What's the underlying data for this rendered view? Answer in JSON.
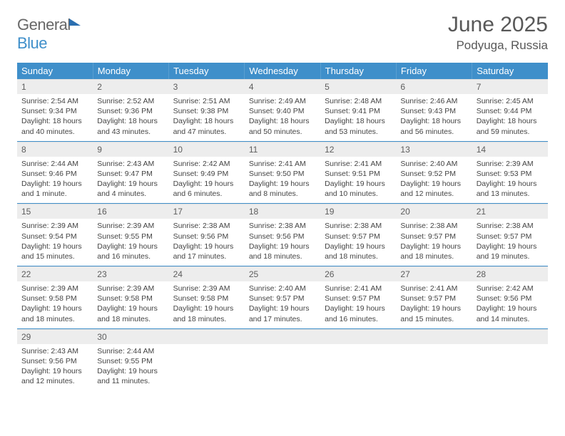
{
  "brand": {
    "part1": "General",
    "part2": "Blue"
  },
  "title": "June 2025",
  "location": "Podyuga, Russia",
  "colors": {
    "header_bg": "#3f8fca",
    "header_text": "#ffffff",
    "daynum_bg": "#ededed",
    "daynum_text": "#5d5d5d",
    "body_text": "#444444",
    "rule": "#3f8fca",
    "title_text": "#585858"
  },
  "dow": [
    "Sunday",
    "Monday",
    "Tuesday",
    "Wednesday",
    "Thursday",
    "Friday",
    "Saturday"
  ],
  "weeks": [
    [
      {
        "n": "1",
        "sr": "Sunrise: 2:54 AM",
        "ss": "Sunset: 9:34 PM",
        "dl1": "Daylight: 18 hours",
        "dl2": "and 40 minutes."
      },
      {
        "n": "2",
        "sr": "Sunrise: 2:52 AM",
        "ss": "Sunset: 9:36 PM",
        "dl1": "Daylight: 18 hours",
        "dl2": "and 43 minutes."
      },
      {
        "n": "3",
        "sr": "Sunrise: 2:51 AM",
        "ss": "Sunset: 9:38 PM",
        "dl1": "Daylight: 18 hours",
        "dl2": "and 47 minutes."
      },
      {
        "n": "4",
        "sr": "Sunrise: 2:49 AM",
        "ss": "Sunset: 9:40 PM",
        "dl1": "Daylight: 18 hours",
        "dl2": "and 50 minutes."
      },
      {
        "n": "5",
        "sr": "Sunrise: 2:48 AM",
        "ss": "Sunset: 9:41 PM",
        "dl1": "Daylight: 18 hours",
        "dl2": "and 53 minutes."
      },
      {
        "n": "6",
        "sr": "Sunrise: 2:46 AM",
        "ss": "Sunset: 9:43 PM",
        "dl1": "Daylight: 18 hours",
        "dl2": "and 56 minutes."
      },
      {
        "n": "7",
        "sr": "Sunrise: 2:45 AM",
        "ss": "Sunset: 9:44 PM",
        "dl1": "Daylight: 18 hours",
        "dl2": "and 59 minutes."
      }
    ],
    [
      {
        "n": "8",
        "sr": "Sunrise: 2:44 AM",
        "ss": "Sunset: 9:46 PM",
        "dl1": "Daylight: 19 hours",
        "dl2": "and 1 minute."
      },
      {
        "n": "9",
        "sr": "Sunrise: 2:43 AM",
        "ss": "Sunset: 9:47 PM",
        "dl1": "Daylight: 19 hours",
        "dl2": "and 4 minutes."
      },
      {
        "n": "10",
        "sr": "Sunrise: 2:42 AM",
        "ss": "Sunset: 9:49 PM",
        "dl1": "Daylight: 19 hours",
        "dl2": "and 6 minutes."
      },
      {
        "n": "11",
        "sr": "Sunrise: 2:41 AM",
        "ss": "Sunset: 9:50 PM",
        "dl1": "Daylight: 19 hours",
        "dl2": "and 8 minutes."
      },
      {
        "n": "12",
        "sr": "Sunrise: 2:41 AM",
        "ss": "Sunset: 9:51 PM",
        "dl1": "Daylight: 19 hours",
        "dl2": "and 10 minutes."
      },
      {
        "n": "13",
        "sr": "Sunrise: 2:40 AM",
        "ss": "Sunset: 9:52 PM",
        "dl1": "Daylight: 19 hours",
        "dl2": "and 12 minutes."
      },
      {
        "n": "14",
        "sr": "Sunrise: 2:39 AM",
        "ss": "Sunset: 9:53 PM",
        "dl1": "Daylight: 19 hours",
        "dl2": "and 13 minutes."
      }
    ],
    [
      {
        "n": "15",
        "sr": "Sunrise: 2:39 AM",
        "ss": "Sunset: 9:54 PM",
        "dl1": "Daylight: 19 hours",
        "dl2": "and 15 minutes."
      },
      {
        "n": "16",
        "sr": "Sunrise: 2:39 AM",
        "ss": "Sunset: 9:55 PM",
        "dl1": "Daylight: 19 hours",
        "dl2": "and 16 minutes."
      },
      {
        "n": "17",
        "sr": "Sunrise: 2:38 AM",
        "ss": "Sunset: 9:56 PM",
        "dl1": "Daylight: 19 hours",
        "dl2": "and 17 minutes."
      },
      {
        "n": "18",
        "sr": "Sunrise: 2:38 AM",
        "ss": "Sunset: 9:56 PM",
        "dl1": "Daylight: 19 hours",
        "dl2": "and 18 minutes."
      },
      {
        "n": "19",
        "sr": "Sunrise: 2:38 AM",
        "ss": "Sunset: 9:57 PM",
        "dl1": "Daylight: 19 hours",
        "dl2": "and 18 minutes."
      },
      {
        "n": "20",
        "sr": "Sunrise: 2:38 AM",
        "ss": "Sunset: 9:57 PM",
        "dl1": "Daylight: 19 hours",
        "dl2": "and 18 minutes."
      },
      {
        "n": "21",
        "sr": "Sunrise: 2:38 AM",
        "ss": "Sunset: 9:57 PM",
        "dl1": "Daylight: 19 hours",
        "dl2": "and 19 minutes."
      }
    ],
    [
      {
        "n": "22",
        "sr": "Sunrise: 2:39 AM",
        "ss": "Sunset: 9:58 PM",
        "dl1": "Daylight: 19 hours",
        "dl2": "and 18 minutes."
      },
      {
        "n": "23",
        "sr": "Sunrise: 2:39 AM",
        "ss": "Sunset: 9:58 PM",
        "dl1": "Daylight: 19 hours",
        "dl2": "and 18 minutes."
      },
      {
        "n": "24",
        "sr": "Sunrise: 2:39 AM",
        "ss": "Sunset: 9:58 PM",
        "dl1": "Daylight: 19 hours",
        "dl2": "and 18 minutes."
      },
      {
        "n": "25",
        "sr": "Sunrise: 2:40 AM",
        "ss": "Sunset: 9:57 PM",
        "dl1": "Daylight: 19 hours",
        "dl2": "and 17 minutes."
      },
      {
        "n": "26",
        "sr": "Sunrise: 2:41 AM",
        "ss": "Sunset: 9:57 PM",
        "dl1": "Daylight: 19 hours",
        "dl2": "and 16 minutes."
      },
      {
        "n": "27",
        "sr": "Sunrise: 2:41 AM",
        "ss": "Sunset: 9:57 PM",
        "dl1": "Daylight: 19 hours",
        "dl2": "and 15 minutes."
      },
      {
        "n": "28",
        "sr": "Sunrise: 2:42 AM",
        "ss": "Sunset: 9:56 PM",
        "dl1": "Daylight: 19 hours",
        "dl2": "and 14 minutes."
      }
    ],
    [
      {
        "n": "29",
        "sr": "Sunrise: 2:43 AM",
        "ss": "Sunset: 9:56 PM",
        "dl1": "Daylight: 19 hours",
        "dl2": "and 12 minutes."
      },
      {
        "n": "30",
        "sr": "Sunrise: 2:44 AM",
        "ss": "Sunset: 9:55 PM",
        "dl1": "Daylight: 19 hours",
        "dl2": "and 11 minutes."
      },
      {
        "blank": true
      },
      {
        "blank": true
      },
      {
        "blank": true
      },
      {
        "blank": true
      },
      {
        "blank": true
      }
    ]
  ]
}
